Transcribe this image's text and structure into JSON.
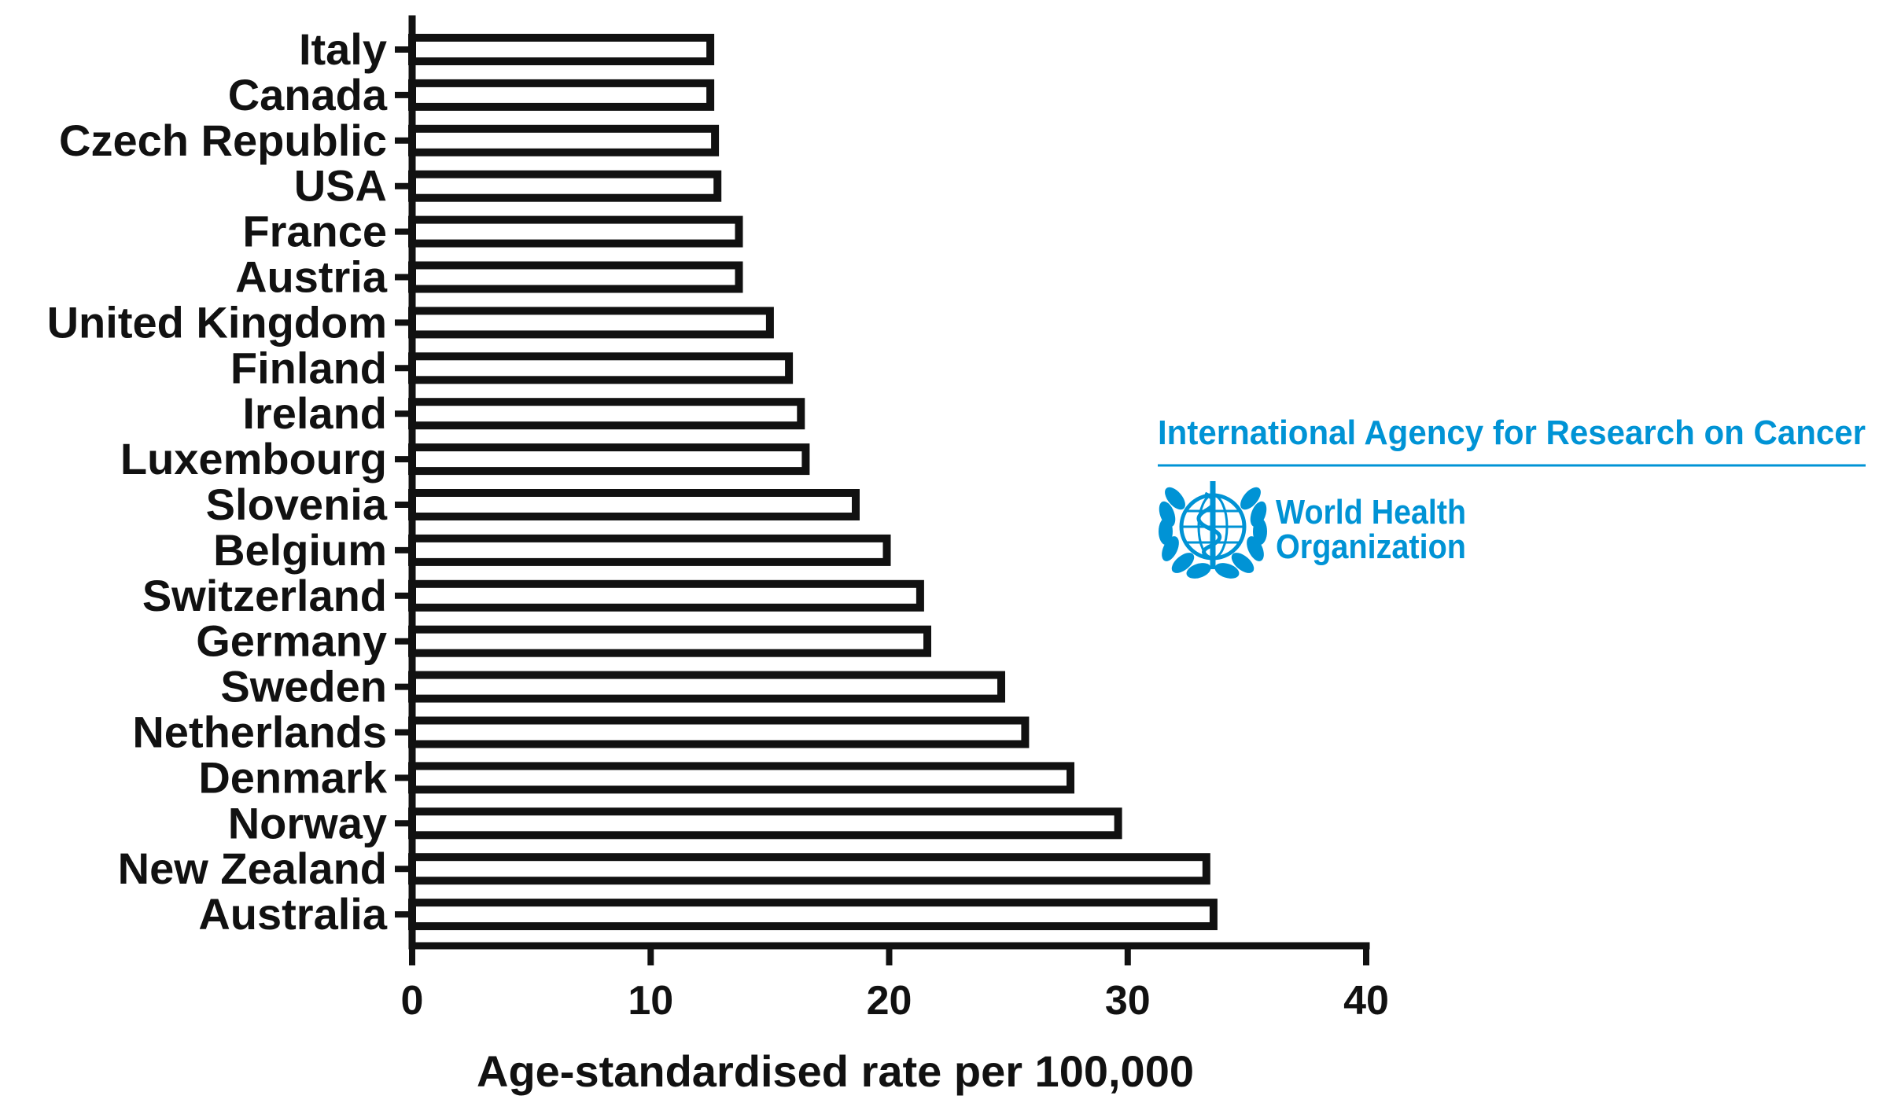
{
  "chart_data": {
    "type": "bar",
    "orientation": "horizontal",
    "categories": [
      "Italy",
      "Canada",
      "Czech Republic",
      "USA",
      "France",
      "Austria",
      "United Kingdom",
      "Finland",
      "Ireland",
      "Luxembourg",
      "Slovenia",
      "Belgium",
      "Switzerland",
      "Germany",
      "Sweden",
      "Netherlands",
      "Denmark",
      "Norway",
      "New Zealand",
      "Australia"
    ],
    "values": [
      12.5,
      12.5,
      12.7,
      12.8,
      13.7,
      13.7,
      15.0,
      15.8,
      16.3,
      16.5,
      18.6,
      19.9,
      21.3,
      21.6,
      24.7,
      25.7,
      27.6,
      29.6,
      33.3,
      33.6
    ],
    "xlabel": "Age-standardised rate per 100,000",
    "ylabel": "",
    "xlim": [
      0,
      40
    ],
    "xticks": [
      0,
      10,
      20,
      30,
      40
    ],
    "grid": false,
    "colors": {
      "bar_fill": "#ffffff",
      "bar_stroke": "#111111",
      "axis": "#111111",
      "logo_blue": "#0093d5"
    }
  },
  "logo": {
    "agency_name": "International Agency for Research on Cancer",
    "who_line1": "World Health",
    "who_line2": "Organization",
    "emblem_icon": "who-emblem-icon"
  }
}
